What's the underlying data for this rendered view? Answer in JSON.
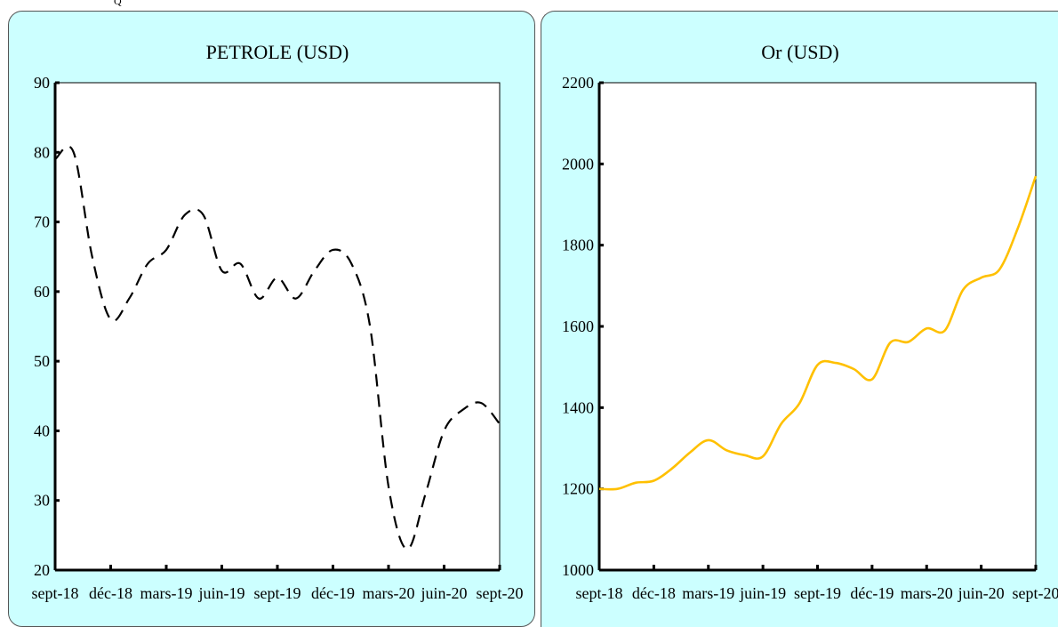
{
  "top_fragment": "Q",
  "chart_data": [
    {
      "type": "line",
      "title": "PETROLE (USD)",
      "xlabel": "",
      "ylabel": "",
      "ylim": [
        20,
        90
      ],
      "yticks": [
        "90",
        "80",
        "70",
        "60",
        "50",
        "40",
        "30",
        "20"
      ],
      "xticks": [
        "sept-18",
        "déc-18",
        "mars-19",
        "juin-19",
        "sept-19",
        "déc-19",
        "mars-20",
        "juin-20",
        "sept-20"
      ],
      "grid": false,
      "line_color": "#000000",
      "line_style": "dashed",
      "series": [
        {
          "x": [
            "sept-18",
            "oct-18",
            "nov-18",
            "déc-18",
            "janv-19",
            "févr-19",
            "mars-19",
            "avr-19",
            "mai-19",
            "juin-19",
            "juil-19",
            "août-19",
            "sept-19",
            "oct-19",
            "nov-19",
            "déc-19",
            "janv-20",
            "févr-20",
            "mars-20",
            "avr-20",
            "mai-20",
            "juin-20",
            "juil-20",
            "août-20",
            "sept-20"
          ],
          "values": [
            79,
            80,
            65,
            56,
            59,
            64,
            66,
            71,
            71,
            63,
            64,
            59,
            62,
            59,
            63,
            66,
            64,
            55,
            32,
            23,
            31,
            40,
            43,
            44,
            41
          ]
        }
      ]
    },
    {
      "type": "line",
      "title": "Or (USD)",
      "xlabel": "",
      "ylabel": "",
      "ylim": [
        1000,
        2200
      ],
      "yticks": [
        "2200",
        "2000",
        "1800",
        "1600",
        "1400",
        "1200",
        "1000"
      ],
      "xticks": [
        "sept-18",
        "déc-18",
        "mars-19",
        "juin-19",
        "sept-19",
        "déc-19",
        "mars-20",
        "juin-20",
        "sept-20"
      ],
      "grid": false,
      "line_color": "#ffc000",
      "line_style": "solid",
      "series": [
        {
          "x": [
            "sept-18",
            "oct-18",
            "nov-18",
            "déc-18",
            "janv-19",
            "févr-19",
            "mars-19",
            "avr-19",
            "mai-19",
            "juin-19",
            "juil-19",
            "août-19",
            "sept-19",
            "oct-19",
            "nov-19",
            "déc-19",
            "janv-20",
            "févr-20",
            "mars-20",
            "avr-20",
            "mai-20",
            "juin-20",
            "juil-20",
            "août-20",
            "sept-20"
          ],
          "values": [
            1200,
            1200,
            1215,
            1220,
            1250,
            1290,
            1320,
            1295,
            1283,
            1280,
            1360,
            1410,
            1505,
            1510,
            1495,
            1470,
            1560,
            1562,
            1595,
            1590,
            1690,
            1720,
            1740,
            1840,
            1970
          ]
        }
      ]
    }
  ]
}
